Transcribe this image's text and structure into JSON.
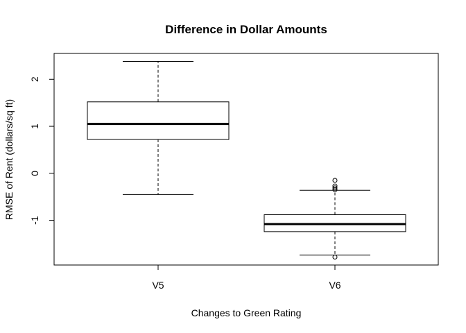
{
  "chart_data": {
    "type": "boxplot",
    "title": "Difference in Dollar Amounts",
    "xlabel": "Changes to Green Rating",
    "ylabel": "RMSE of Rent (dollars/sq ft)",
    "ylim": [
      -1.95,
      2.55
    ],
    "yticks": [
      "2",
      "1",
      "0",
      "-1"
    ],
    "categories": [
      "V5",
      "V6"
    ],
    "boxes": [
      {
        "category": "V5",
        "whisker_low": -0.45,
        "q1": 0.72,
        "median": 1.05,
        "q3": 1.52,
        "whisker_high": 2.38,
        "outliers": []
      },
      {
        "category": "V6",
        "whisker_low": -1.74,
        "q1": -1.24,
        "median": -1.08,
        "q3": -0.88,
        "whisker_high": -0.36,
        "outliers": [
          -0.15,
          -0.27,
          -0.31,
          -0.35,
          -1.78
        ]
      }
    ],
    "grid": false,
    "legend": "none"
  }
}
